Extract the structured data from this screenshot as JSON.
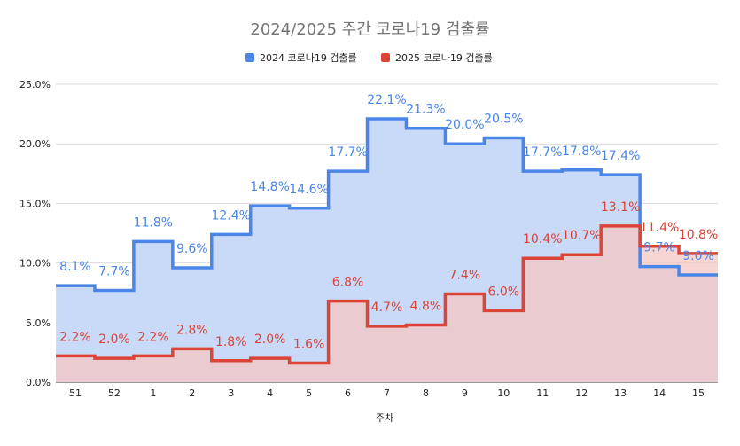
{
  "chart_data": {
    "type": "area",
    "title": "2024/2025 주간 코로나19 검출률",
    "xlabel": "주차",
    "ylabel": "",
    "categories": [
      "51",
      "52",
      "1",
      "2",
      "3",
      "4",
      "5",
      "6",
      "7",
      "8",
      "9",
      "10",
      "11",
      "12",
      "13",
      "14",
      "15"
    ],
    "ylim": [
      0,
      25
    ],
    "yticks": [
      "0.0%",
      "5.0%",
      "10.0%",
      "15.0%",
      "20.0%",
      "25.0%"
    ],
    "grid": true,
    "legend_position": "top",
    "series": [
      {
        "name": "2024 코로나19 검출률",
        "color": "#4a86e8",
        "fill": "#c9daf8",
        "values": [
          8.1,
          7.7,
          11.8,
          9.6,
          12.4,
          14.8,
          14.6,
          17.7,
          22.1,
          21.3,
          20.0,
          20.5,
          17.7,
          17.8,
          17.4,
          9.7,
          9.0
        ],
        "labels": [
          "8.1%",
          "7.7%",
          "11.8%",
          "9.6%",
          "12.4%",
          "14.8%",
          "14.6%",
          "17.7%",
          "22.1%",
          "21.3%",
          "20.0%",
          "20.5%",
          "17.7%",
          "17.8%",
          "17.4%",
          "9.7%",
          "9.0%"
        ]
      },
      {
        "name": "2025 코로나19 검출률",
        "color": "#db4437",
        "fill": "#f4c7c3",
        "values": [
          2.2,
          2.0,
          2.2,
          2.8,
          1.8,
          2.0,
          1.6,
          6.8,
          4.7,
          4.8,
          7.4,
          6.0,
          10.4,
          10.7,
          13.1,
          11.4,
          10.8
        ],
        "labels": [
          "2.2%",
          "2.0%",
          "2.2%",
          "2.8%",
          "1.8%",
          "2.0%",
          "1.6%",
          "6.8%",
          "4.7%",
          "4.8%",
          "7.4%",
          "6.0%",
          "10.4%",
          "10.7%",
          "13.1%",
          "11.4%",
          "10.8%"
        ]
      }
    ]
  }
}
